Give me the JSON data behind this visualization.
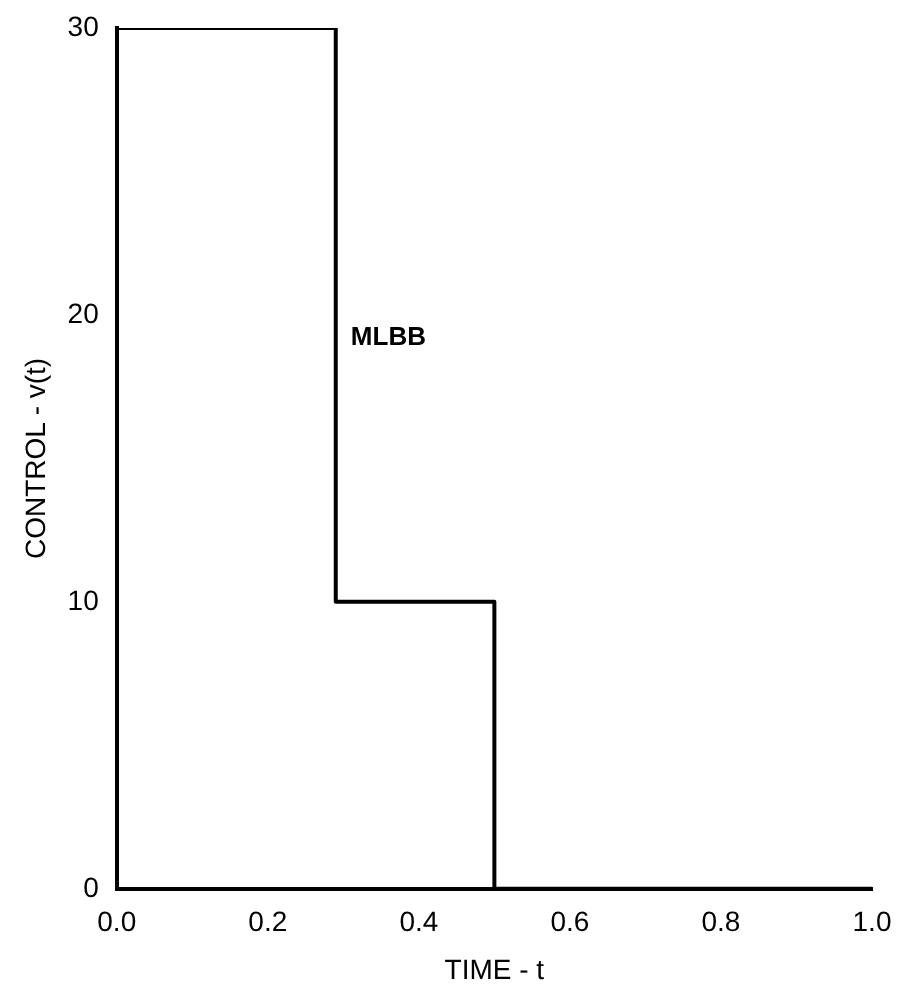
{
  "chart_data": {
    "type": "step",
    "xlabel": "TIME - t",
    "ylabel": "CONTROL - v(t)",
    "x": [
      0,
      0.29,
      0.5,
      1.0
    ],
    "series": [
      {
        "color": "#000000",
        "values": [
          30,
          10,
          0,
          0
        ]
      }
    ],
    "xlim": [
      0,
      1.0
    ],
    "ylim": [
      0,
      30
    ],
    "xticks": [
      {
        "value": 0,
        "label": "0.0"
      },
      0.2,
      0.4,
      0.6,
      0.8,
      {
        "value": 1.0,
        "label": "1.0"
      }
    ],
    "yticks": [
      0,
      10,
      20,
      30
    ],
    "annotations": [
      "MLBB"
    ],
    "grid": false,
    "legend": false,
    "marker": "none",
    "line_style": "solid"
  }
}
